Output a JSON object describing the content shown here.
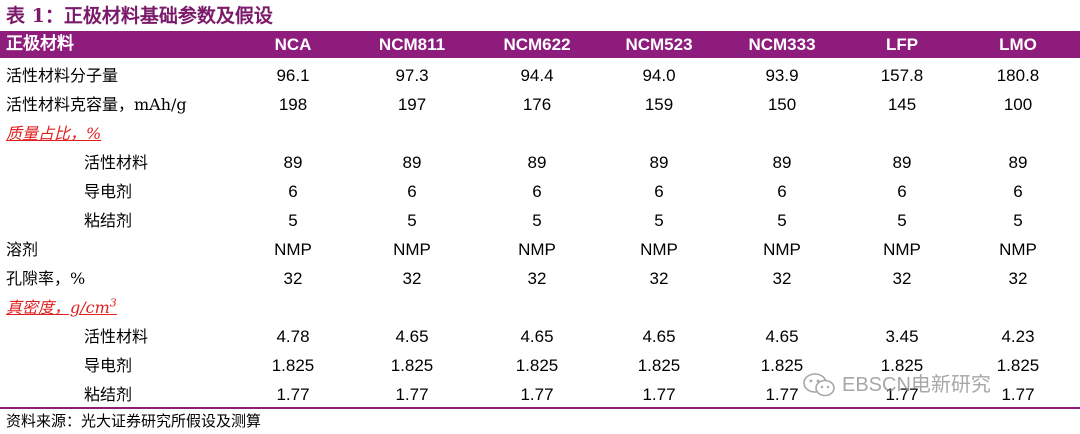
{
  "title": "表 1：正极材料基础参数及假设",
  "header": [
    "正极材料",
    "NCA",
    "NCM811",
    "NCM622",
    "NCM523",
    "NCM333",
    "LFP",
    "LMO"
  ],
  "rows": [
    {
      "label": "活性材料分子量",
      "indent": false,
      "section": false,
      "values": [
        "96.1",
        "97.3",
        "94.4",
        "94.0",
        "93.9",
        "157.8",
        "180.8"
      ]
    },
    {
      "label": "活性材料克容量，mAh/g",
      "indent": false,
      "section": false,
      "values": [
        "198",
        "197",
        "176",
        "159",
        "150",
        "145",
        "100"
      ]
    },
    {
      "label": "质量占比，%",
      "indent": false,
      "section": true,
      "values": []
    },
    {
      "label": "活性材料",
      "indent": true,
      "section": false,
      "values": [
        "89",
        "89",
        "89",
        "89",
        "89",
        "89",
        "89"
      ]
    },
    {
      "label": "导电剂",
      "indent": true,
      "section": false,
      "values": [
        "6",
        "6",
        "6",
        "6",
        "6",
        "6",
        "6"
      ]
    },
    {
      "label": "粘结剂",
      "indent": true,
      "section": false,
      "values": [
        "5",
        "5",
        "5",
        "5",
        "5",
        "5",
        "5"
      ]
    },
    {
      "label": "溶剂",
      "indent": false,
      "section": false,
      "values": [
        "NMP",
        "NMP",
        "NMP",
        "NMP",
        "NMP",
        "NMP",
        "NMP"
      ]
    },
    {
      "label": "孔隙率，%",
      "indent": false,
      "section": false,
      "values": [
        "32",
        "32",
        "32",
        "32",
        "32",
        "32",
        "32"
      ]
    },
    {
      "label": "真密度，g/cm",
      "sup": "3",
      "indent": false,
      "section": true,
      "values": []
    },
    {
      "label": "活性材料",
      "indent": true,
      "section": false,
      "values": [
        "4.78",
        "4.65",
        "4.65",
        "4.65",
        "4.65",
        "3.45",
        "4.23"
      ]
    },
    {
      "label": "导电剂",
      "indent": true,
      "section": false,
      "values": [
        "1.825",
        "1.825",
        "1.825",
        "1.825",
        "1.825",
        "1.825",
        "1.825"
      ]
    },
    {
      "label": "粘结剂",
      "indent": true,
      "section": false,
      "values": [
        "1.77",
        "1.77",
        "1.77",
        "1.77",
        "1.77",
        "1.77",
        "1.77"
      ]
    }
  ],
  "source": "资料来源：光大证券研究所假设及测算",
  "watermark": "EBSCN电新研究",
  "colors": {
    "header_bg": "#8d1c7d",
    "title": "#7b1a6a",
    "section": "#e02020"
  }
}
